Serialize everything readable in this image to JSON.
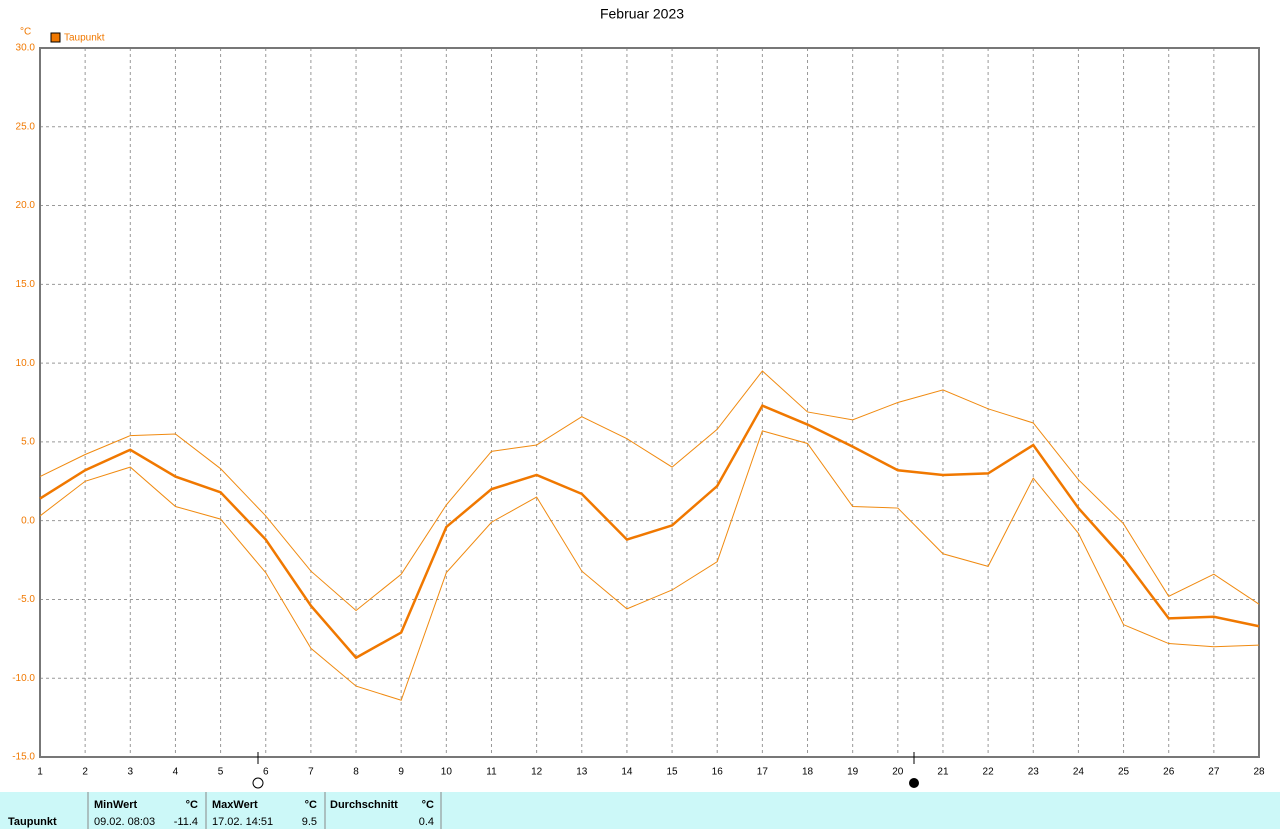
{
  "chart_data": {
    "type": "line",
    "title": "Februar 2023",
    "y_label": "°C",
    "legend": "top-left",
    "grid": true,
    "x": [
      1,
      2,
      3,
      4,
      5,
      6,
      7,
      8,
      9,
      10,
      11,
      12,
      13,
      14,
      15,
      16,
      17,
      18,
      19,
      20,
      21,
      22,
      23,
      24,
      25,
      26,
      27,
      28
    ],
    "xlim": [
      1,
      28
    ],
    "xticks": [
      1,
      2,
      3,
      4,
      5,
      6,
      7,
      8,
      9,
      10,
      11,
      12,
      13,
      14,
      15,
      16,
      17,
      18,
      19,
      20,
      21,
      22,
      23,
      24,
      25,
      26,
      27,
      28
    ],
    "ylim": [
      -15,
      30
    ],
    "yticks": [
      {
        "value": -15,
        "label": "-15.0"
      },
      {
        "value": -10,
        "label": "-10.0"
      },
      {
        "value": -5,
        "label": "-5.0"
      },
      {
        "value": 0,
        "label": "0.0"
      },
      {
        "value": 5,
        "label": "5.0"
      },
      {
        "value": 10,
        "label": "10.0"
      },
      {
        "value": 15,
        "label": "15.0"
      },
      {
        "value": 20,
        "label": "20.0"
      },
      {
        "value": 25,
        "label": "25.0"
      },
      {
        "value": 30,
        "label": "30.0"
      }
    ],
    "series": [
      {
        "name": "Taupunkt",
        "color": "#f07800",
        "values": [
          1.4,
          3.2,
          4.5,
          2.8,
          1.8,
          -1.2,
          -5.4,
          -8.7,
          -7.1,
          -0.4,
          2.0,
          2.9,
          1.7,
          -1.2,
          -0.3,
          2.2,
          7.3,
          6.1,
          4.7,
          3.2,
          2.9,
          3.0,
          4.8,
          0.8,
          -2.4,
          -6.2,
          -6.1,
          -6.7
        ]
      },
      {
        "color": "#f08a10",
        "values": [
          2.8,
          4.2,
          5.4,
          5.5,
          3.3,
          0.3,
          -3.2,
          -5.7,
          -3.4,
          1.0,
          4.4,
          4.8,
          6.6,
          5.2,
          3.4,
          5.8,
          9.5,
          6.9,
          6.4,
          7.5,
          8.3,
          7.1,
          6.2,
          2.6,
          -0.2,
          -4.8,
          -3.4,
          -5.3
        ]
      },
      {
        "color": "#f08a10",
        "values": [
          0.3,
          2.5,
          3.4,
          0.9,
          0.1,
          -3.3,
          -8.1,
          -10.5,
          -11.4,
          -3.3,
          -0.1,
          1.5,
          -3.2,
          -5.6,
          -4.4,
          -2.6,
          5.7,
          4.9,
          0.9,
          0.8,
          -2.1,
          -2.9,
          2.7,
          -0.8,
          -6.6,
          -7.8,
          -8.0,
          -7.9
        ]
      }
    ]
  },
  "stats": {
    "row_label": "Taupunkt",
    "columns": [
      {
        "header": "MinWert",
        "unit": "°C",
        "when": "09.02.  08:03",
        "value": "-11.4"
      },
      {
        "header": "MaxWert",
        "unit": "°C",
        "when": "17.02.  14:51",
        "value": "9.5"
      },
      {
        "header": "Durchschnitt",
        "unit": "°C",
        "value": "0.4"
      }
    ]
  }
}
